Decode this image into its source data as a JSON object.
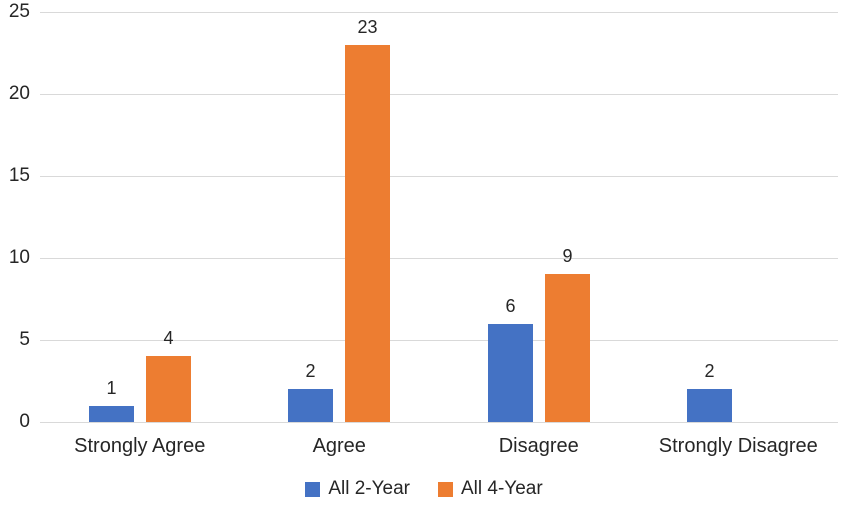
{
  "chart_data": {
    "type": "bar",
    "title": "",
    "categories": [
      "Strongly Agree",
      "Agree",
      "Disagree",
      "Strongly Disagree"
    ],
    "series": [
      {
        "name": "All 2-Year",
        "color": "#4472c4",
        "values": [
          1,
          2,
          6,
          2
        ]
      },
      {
        "name": "All 4-Year",
        "color": "#ed7d31",
        "values": [
          4,
          23,
          9,
          null
        ]
      }
    ],
    "ylabel": "",
    "xlabel": "",
    "ylim": [
      0,
      25
    ],
    "yticks": [
      0,
      5,
      10,
      15,
      20,
      25
    ],
    "grid": true,
    "gridline_color": "#d9d9d9",
    "data_labels": true,
    "legend_position": "bottom",
    "text_color": "#262626"
  }
}
